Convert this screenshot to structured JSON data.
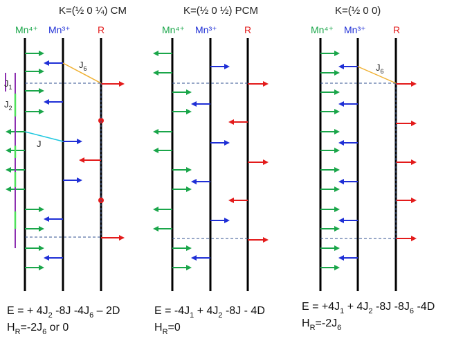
{
  "panels": [
    {
      "title": "K=(½  0 ¼) CM",
      "energy": {
        "main": "E = + 4J",
        "s1": "2",
        "rest": " -8J -4J",
        "s2": "6",
        "tail": " – 2D"
      },
      "hr": {
        "pre": "H",
        "sub": "R",
        "post": "=-2J",
        "sub2": "6",
        "tail": " or 0"
      }
    },
    {
      "title": "K=(½  0 ½) PCM",
      "energy": {
        "main": "E = -4J",
        "s1": "1",
        "rest": " + 4J",
        "s2": "2",
        "tail": " -8J - 4D"
      },
      "hr": {
        "pre": "H",
        "sub": "R",
        "post": "=0",
        "sub2": "",
        "tail": ""
      }
    },
    {
      "title": "K=(½ 0 0)",
      "energy": {
        "main": "E = +4J",
        "s1": "1",
        "rest": " + 4J",
        "s2": "2",
        "tail": " -8J  -8J",
        "s3": "6",
        "tail2": " -4D"
      },
      "hr": {
        "pre": "H",
        "sub": "R",
        "post": "=-2J",
        "sub2": "6",
        "tail": ""
      }
    }
  ],
  "column_labels": {
    "mn4": "Mn⁴⁺",
    "mn3": "Mn³⁺",
    "r": "R"
  },
  "annotations": {
    "j1": "J",
    "j1_sub": "1",
    "j2": "J",
    "j2_sub": "2",
    "j": "J",
    "j6": "J",
    "j6_sub": "6"
  },
  "colors": {
    "mn4": "#1aa64a",
    "mn3": "#1f2fd6",
    "r": "#e31b1b",
    "j6": "#f0b030",
    "j": "#20c8e0",
    "j1": "#8c2fb0",
    "j2": "#4fe05a",
    "dot": "#e31b1b",
    "dash": "#2f4f8f"
  }
}
